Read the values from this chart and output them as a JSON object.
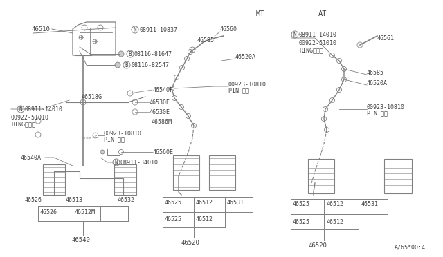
{
  "bg_color": "#ffffff",
  "line_color": "#808080",
  "text_color": "#404040",
  "diagram_code": "A·65⁂00:4",
  "mt_label": "MT",
  "at_label": "AT"
}
